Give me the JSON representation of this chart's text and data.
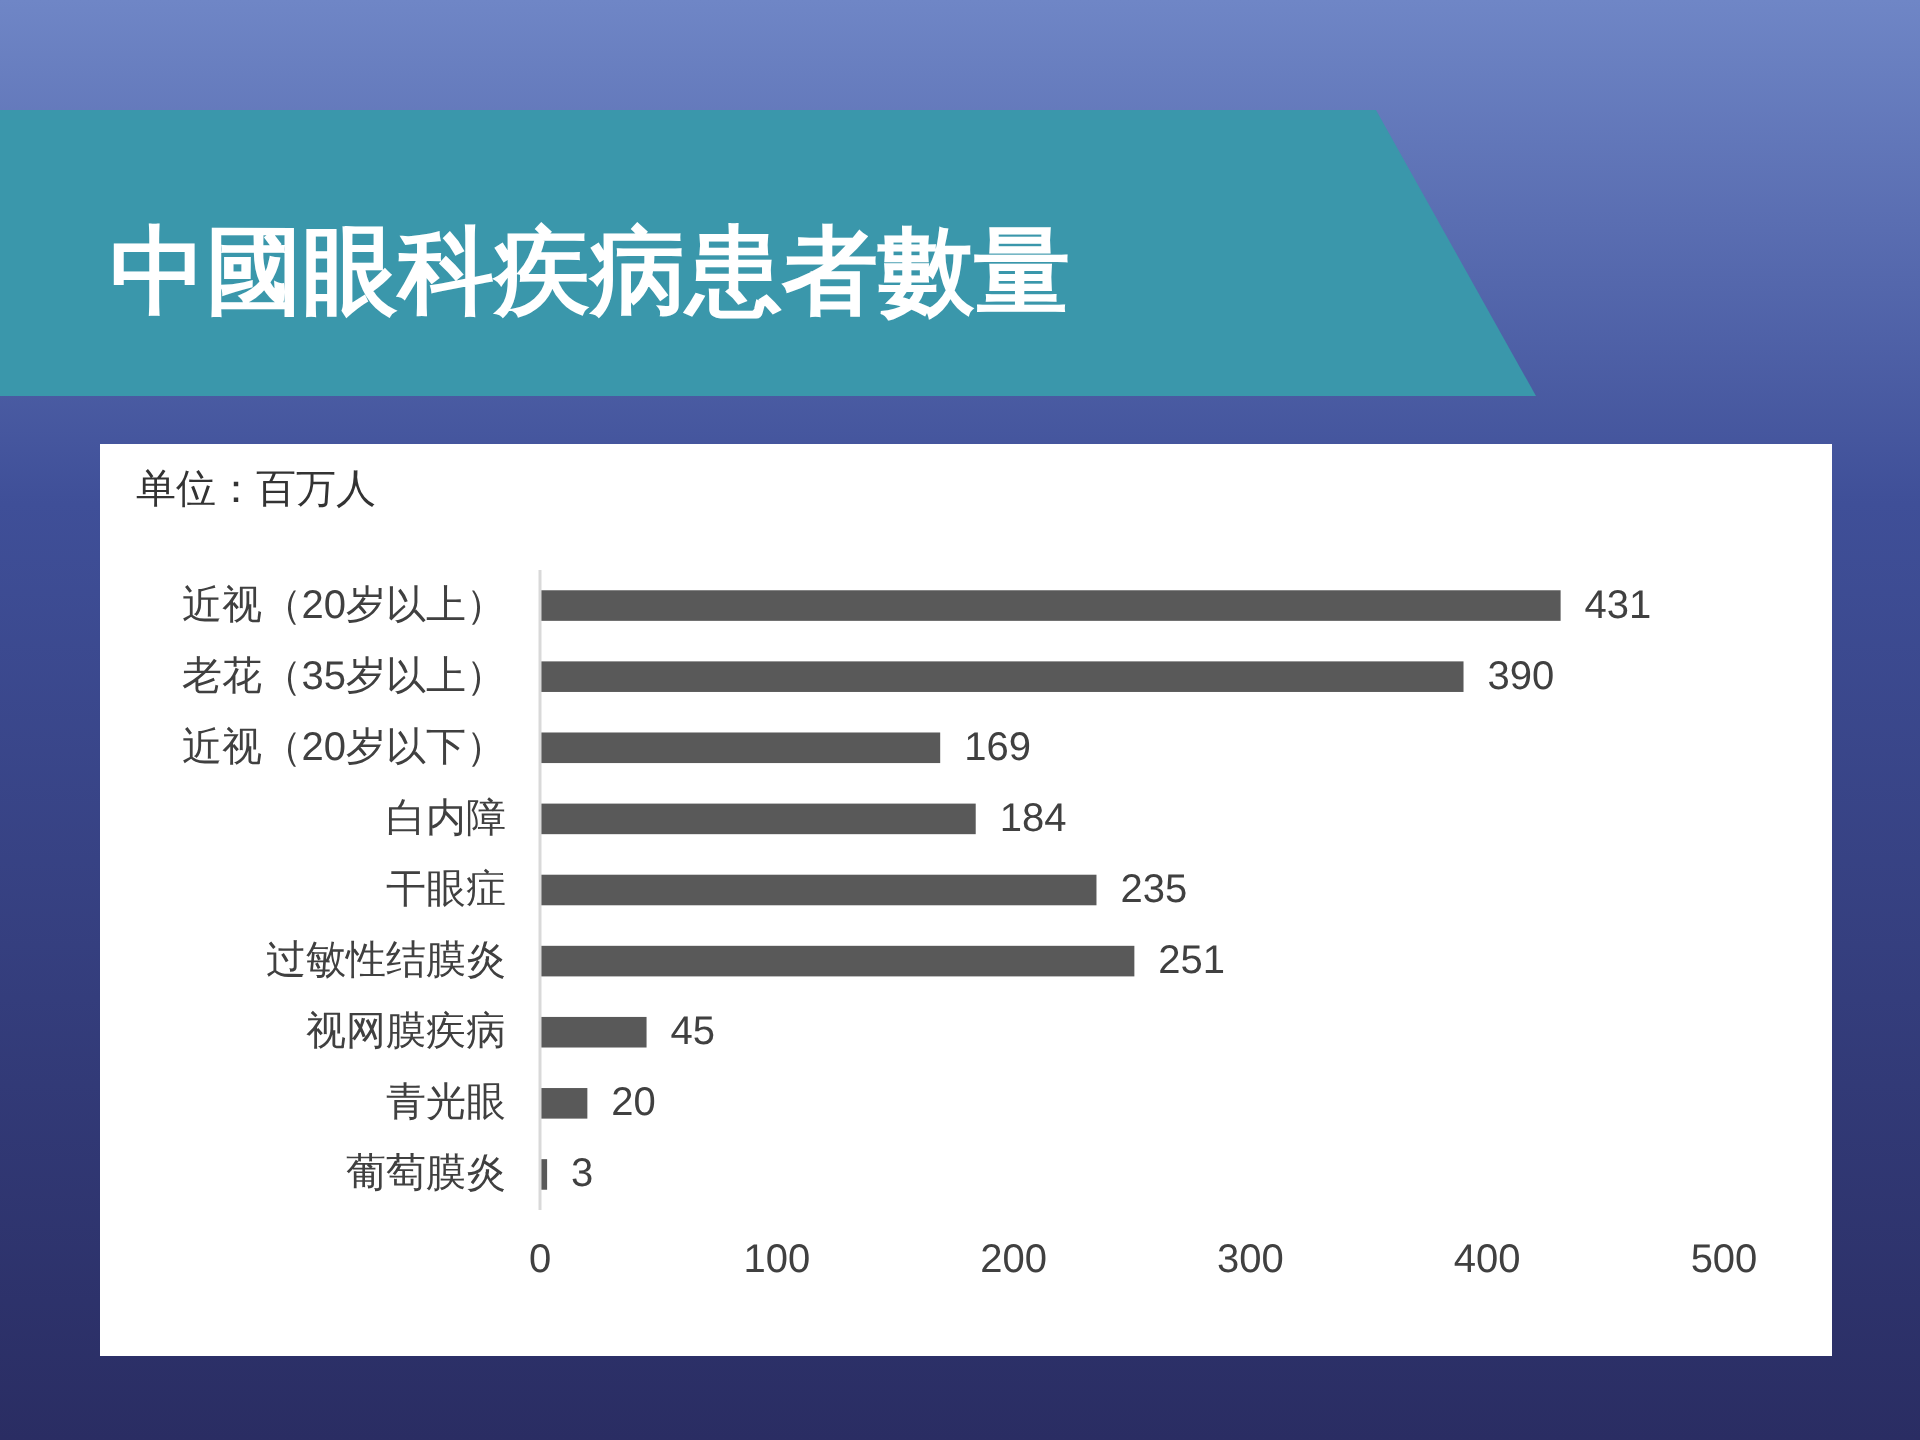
{
  "chart_data": {
    "type": "bar",
    "orientation": "horizontal",
    "title": "中國眼科疾病患者數量",
    "annotations": [
      "单位：百万人"
    ],
    "categories": [
      "近视（20岁以上）",
      "老花（35岁以上）",
      "近视（20岁以下）",
      "白内障",
      "干眼症",
      "过敏性结膜炎",
      "视网膜疾病",
      "青光眼",
      "葡萄膜炎"
    ],
    "values": [
      431,
      390,
      169,
      184,
      235,
      251,
      45,
      20,
      3
    ],
    "color": "#595959",
    "xlim": [
      0,
      500
    ],
    "xticks": [
      0,
      100,
      200,
      300,
      400,
      500
    ],
    "data_labels": true,
    "grid": false
  }
}
